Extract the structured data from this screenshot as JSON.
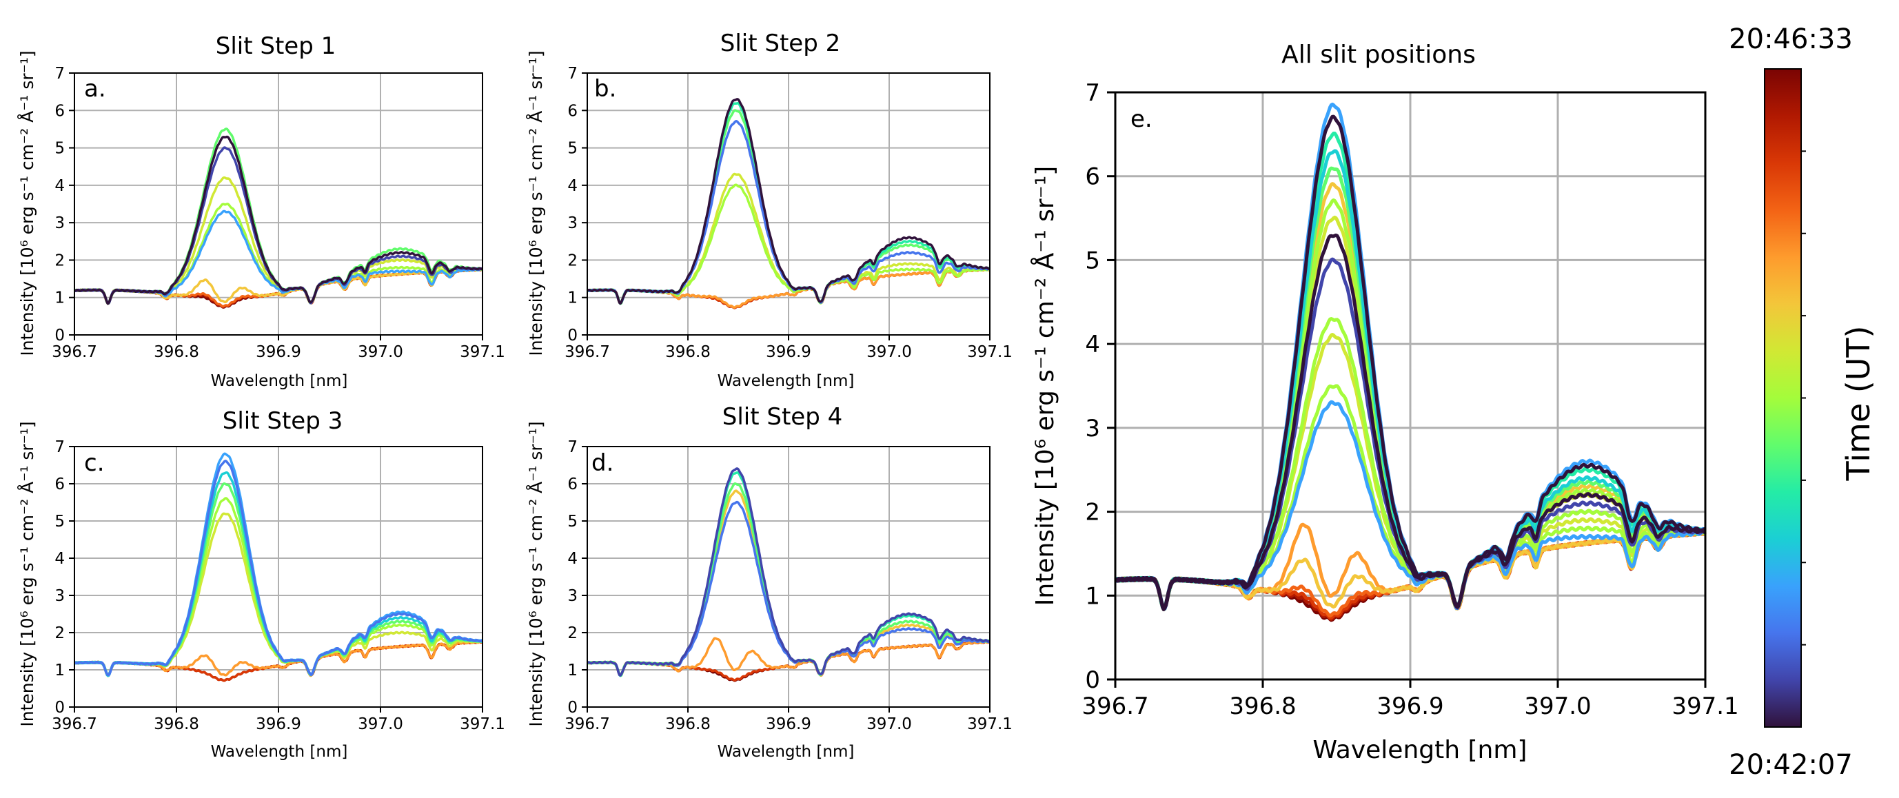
{
  "chart_data": {
    "type": "line",
    "x_range": [
      396.7,
      397.1
    ],
    "x_ticks": [
      "396.7",
      "396.8",
      "396.9",
      "397.0",
      "397.1"
    ],
    "y_range": [
      0,
      7
    ],
    "y_ticks": [
      "0",
      "1",
      "2",
      "3",
      "4",
      "5",
      "6",
      "7"
    ],
    "xlabel": "Wavelength [nm]",
    "ylabel_small": "Intensity [10⁶ erg s⁻¹ cm⁻² Å⁻¹ sr⁻¹]",
    "ylabel_large": "Intensity [10⁶ erg s⁻¹ cm⁻² Å⁻¹ sr⁻¹]",
    "grid": true,
    "colorbar": {
      "label": "Time (UT)",
      "top_label": "20:46:33",
      "bottom_label": "20:42:07",
      "colors": [
        "#30123b",
        "#4145ab",
        "#4675ed",
        "#39a2fc",
        "#1bcfd4",
        "#24eca6",
        "#61fc6c",
        "#a4fc3b",
        "#d1e834",
        "#f3c63a",
        "#fe9b2d",
        "#f36315",
        "#d93806",
        "#b11901",
        "#7a0403"
      ]
    },
    "panels": [
      {
        "label": "a.",
        "title": "Slit Step 1",
        "series": [
          {
            "peak": 5.5,
            "red_bump": 2.3,
            "color_index": 6
          },
          {
            "peak": 5.3,
            "red_bump": 2.2,
            "color_index": 0
          },
          {
            "peak": 5.0,
            "red_bump": 2.1,
            "color_index": 1
          },
          {
            "peak": 4.2,
            "red_bump": 2.0,
            "color_index": 8
          },
          {
            "peak": 3.5,
            "red_bump": 1.8,
            "color_index": 7
          },
          {
            "peak": 3.3,
            "red_bump": 1.7,
            "color_index": 3
          },
          {
            "peak": 1.65,
            "red_bump": 1.2,
            "color_index": 9
          },
          {
            "peak": 1.2,
            "red_bump": 1.15,
            "color_index": 11
          },
          {
            "peak": 1.15,
            "red_bump": 1.1,
            "color_index": 13
          },
          {
            "peak": 1.1,
            "red_bump": 1.05,
            "color_index": 14
          }
        ]
      },
      {
        "label": "b.",
        "title": "Slit Step 2",
        "series": [
          {
            "peak": 6.3,
            "red_bump": 2.6,
            "color_index": 0
          },
          {
            "peak": 6.2,
            "red_bump": 2.5,
            "color_index": 5
          },
          {
            "peak": 6.0,
            "red_bump": 2.4,
            "color_index": 6
          },
          {
            "peak": 5.7,
            "red_bump": 2.2,
            "color_index": 2
          },
          {
            "peak": 4.3,
            "red_bump": 1.9,
            "color_index": 8
          },
          {
            "peak": 4.0,
            "red_bump": 1.75,
            "color_index": 7
          },
          {
            "peak": 1.1,
            "red_bump": 1.15,
            "color_index": 10
          },
          {
            "peak": 1.05,
            "red_bump": 1.1,
            "color_index": 12
          },
          {
            "peak": 1.05,
            "red_bump": 1.05,
            "color_index": 14
          }
        ]
      },
      {
        "label": "c.",
        "title": "Slit Step 3",
        "series": [
          {
            "peak": 6.8,
            "red_bump": 2.55,
            "color_index": 3
          },
          {
            "peak": 6.6,
            "red_bump": 2.5,
            "color_index": 2
          },
          {
            "peak": 6.3,
            "red_bump": 2.4,
            "color_index": 4
          },
          {
            "peak": 6.0,
            "red_bump": 2.3,
            "color_index": 6
          },
          {
            "peak": 5.6,
            "red_bump": 2.2,
            "color_index": 7
          },
          {
            "peak": 5.2,
            "red_bump": 2.0,
            "color_index": 8
          },
          {
            "peak": 1.55,
            "red_bump": 1.15,
            "color_index": 10
          },
          {
            "peak": 1.0,
            "red_bump": 1.1,
            "color_index": 12
          },
          {
            "peak": 1.0,
            "red_bump": 1.05,
            "color_index": 14
          }
        ]
      },
      {
        "label": "d.",
        "title": "Slit Step 4",
        "series": [
          {
            "peak": 6.4,
            "red_bump": 2.5,
            "color_index": 1
          },
          {
            "peak": 6.3,
            "red_bump": 2.45,
            "color_index": 5
          },
          {
            "peak": 6.0,
            "red_bump": 2.3,
            "color_index": 6
          },
          {
            "peak": 5.8,
            "red_bump": 2.2,
            "color_index": 9
          },
          {
            "peak": 5.5,
            "red_bump": 2.1,
            "color_index": 2
          },
          {
            "peak": 2.1,
            "red_bump": 1.2,
            "color_index": 10
          },
          {
            "peak": 1.05,
            "red_bump": 1.15,
            "color_index": 12
          },
          {
            "peak": 1.0,
            "red_bump": 1.1,
            "color_index": 14
          }
        ]
      },
      {
        "label": "e.",
        "title": "All slit positions",
        "series": [
          {
            "peak": 6.85,
            "red_bump": 2.6,
            "color_index": 3
          },
          {
            "peak": 6.7,
            "red_bump": 2.55,
            "color_index": 0
          },
          {
            "peak": 6.5,
            "red_bump": 2.5,
            "color_index": 5
          },
          {
            "peak": 6.3,
            "red_bump": 2.4,
            "color_index": 4
          },
          {
            "peak": 6.1,
            "red_bump": 2.35,
            "color_index": 6
          },
          {
            "peak": 5.9,
            "red_bump": 2.3,
            "color_index": 9
          },
          {
            "peak": 5.7,
            "red_bump": 2.25,
            "color_index": 7
          },
          {
            "peak": 5.5,
            "red_bump": 2.2,
            "color_index": 8
          },
          {
            "peak": 5.3,
            "red_bump": 2.2,
            "color_index": 0
          },
          {
            "peak": 5.0,
            "red_bump": 2.1,
            "color_index": 1
          },
          {
            "peak": 4.3,
            "red_bump": 2.0,
            "color_index": 7
          },
          {
            "peak": 4.1,
            "red_bump": 1.9,
            "color_index": 8
          },
          {
            "peak": 3.5,
            "red_bump": 1.8,
            "color_index": 7
          },
          {
            "peak": 3.3,
            "red_bump": 1.7,
            "color_index": 3
          },
          {
            "peak": 2.1,
            "red_bump": 1.2,
            "color_index": 10
          },
          {
            "peak": 1.6,
            "red_bump": 1.15,
            "color_index": 9
          },
          {
            "peak": 1.2,
            "red_bump": 1.1,
            "color_index": 11
          },
          {
            "peak": 1.1,
            "red_bump": 1.05,
            "color_index": 12
          },
          {
            "peak": 1.05,
            "red_bump": 1.05,
            "color_index": 13
          },
          {
            "peak": 1.0,
            "red_bump": 1.0,
            "color_index": 14
          }
        ]
      }
    ]
  }
}
